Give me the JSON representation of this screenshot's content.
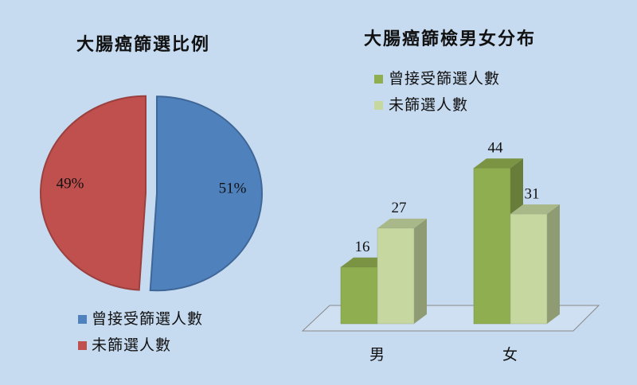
{
  "chart_data": [
    {
      "type": "pie",
      "title": "大腸癌篩選比例",
      "categories": [
        "曾接受篩選人數",
        "未篩選人數"
      ],
      "values": [
        51,
        49
      ],
      "value_labels": [
        "51%",
        "49%"
      ],
      "colors": [
        "#4f81bd",
        "#c0504d"
      ]
    },
    {
      "type": "bar3d",
      "title": "大腸癌篩檢男女分布",
      "categories": [
        "男",
        "女"
      ],
      "series": [
        {
          "name": "曾接受篩選人數",
          "color": "#8fae4f",
          "values": [
            16,
            44
          ]
        },
        {
          "name": "未篩選人數",
          "color": "#c6d8a0",
          "values": [
            27,
            31
          ]
        }
      ]
    }
  ]
}
